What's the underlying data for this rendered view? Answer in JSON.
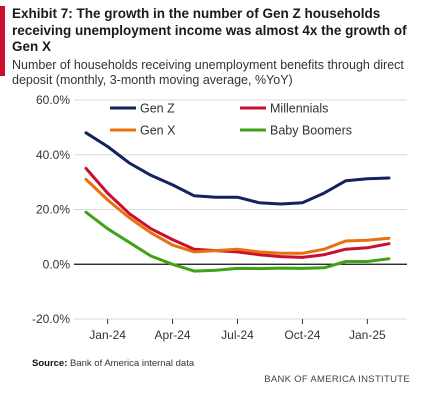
{
  "header": {
    "title": "Exhibit 7: The growth in the number of Gen Z households receiving unemployment income was almost 4x the growth of Gen X",
    "subtitle": "Number of households receiving unemployment benefits through direct deposit (monthly, 3-month moving average, %YoY)"
  },
  "colors": {
    "accent": "#c8102e",
    "axis": "#333333",
    "grid": "#d9d9d9"
  },
  "chart_data": {
    "type": "line",
    "x": [
      "Dec-23",
      "Jan-24",
      "Feb-24",
      "Mar-24",
      "Apr-24",
      "May-24",
      "Jun-24",
      "Jul-24",
      "Aug-24",
      "Sep-24",
      "Oct-24",
      "Nov-24",
      "Dec-24",
      "Jan-25",
      "Feb-25"
    ],
    "x_tick_labels": [
      "Jan-24",
      "Apr-24",
      "Jul-24",
      "Oct-24",
      "Jan-25"
    ],
    "x_tick_indices": [
      1,
      4,
      7,
      10,
      13
    ],
    "y_tick_labels": [
      "60.0%",
      "40.0%",
      "20.0%",
      "0.0%",
      "-20.0%"
    ],
    "y_tick_values": [
      60,
      40,
      20,
      0,
      -20
    ],
    "ylim": [
      -20,
      60
    ],
    "grid": "horizontal",
    "legend_position": "top",
    "series": [
      {
        "name": "Gen Z",
        "color": "#12235f",
        "values": [
          48,
          43,
          37,
          32.5,
          29,
          25,
          24.5,
          24.5,
          22.5,
          22,
          22.5,
          26,
          30.5,
          31.2,
          31.5
        ]
      },
      {
        "name": "Millennials",
        "color": "#c8102e",
        "values": [
          35,
          26,
          18.5,
          13,
          9,
          5.5,
          5,
          4.5,
          3.5,
          2.8,
          2.5,
          3.5,
          5.5,
          6,
          7.5
        ]
      },
      {
        "name": "Gen X",
        "color": "#e8700e",
        "values": [
          31,
          23.5,
          17,
          11.5,
          7,
          4.5,
          5,
          5.5,
          4.5,
          4,
          4,
          5.5,
          8.5,
          8.8,
          9.5
        ]
      },
      {
        "name": "Baby Boomers",
        "color": "#3fa31a",
        "values": [
          19,
          13,
          8,
          3,
          0,
          -2.5,
          -2.2,
          -1.5,
          -1.6,
          -1.4,
          -1.5,
          -1.3,
          1,
          1,
          2
        ]
      }
    ]
  },
  "source": {
    "label": "Source:",
    "text": "Bank of America internal data"
  },
  "footer": {
    "brand": "BANK OF AMERICA INSTITUTE"
  }
}
